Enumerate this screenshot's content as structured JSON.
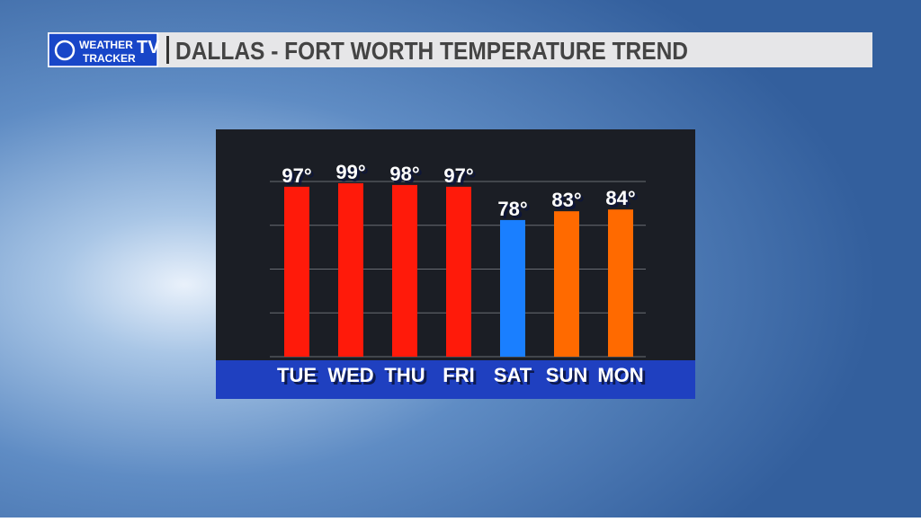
{
  "logo": {
    "line1": "WEATHER",
    "line2": "TRACKER",
    "badge": "TV"
  },
  "chart_data": {
    "type": "bar",
    "title": "DALLAS - FORT WORTH TEMPERATURE TREND",
    "categories": [
      "TUE",
      "WED",
      "THU",
      "FRI",
      "SAT",
      "SUN",
      "MON"
    ],
    "values": [
      97,
      99,
      98,
      97,
      78,
      83,
      84
    ],
    "value_labels": [
      "97°",
      "99°",
      "98°",
      "97°",
      "78°",
      "83°",
      "84°"
    ],
    "colors": [
      "#ff1a0a",
      "#ff1a0a",
      "#ff1a0a",
      "#ff1a0a",
      "#1a7fff",
      "#ff6a00",
      "#ff6a00"
    ],
    "ylim": [
      0,
      100
    ],
    "yticks": [
      0,
      25,
      50,
      75,
      100
    ],
    "grid": true
  }
}
